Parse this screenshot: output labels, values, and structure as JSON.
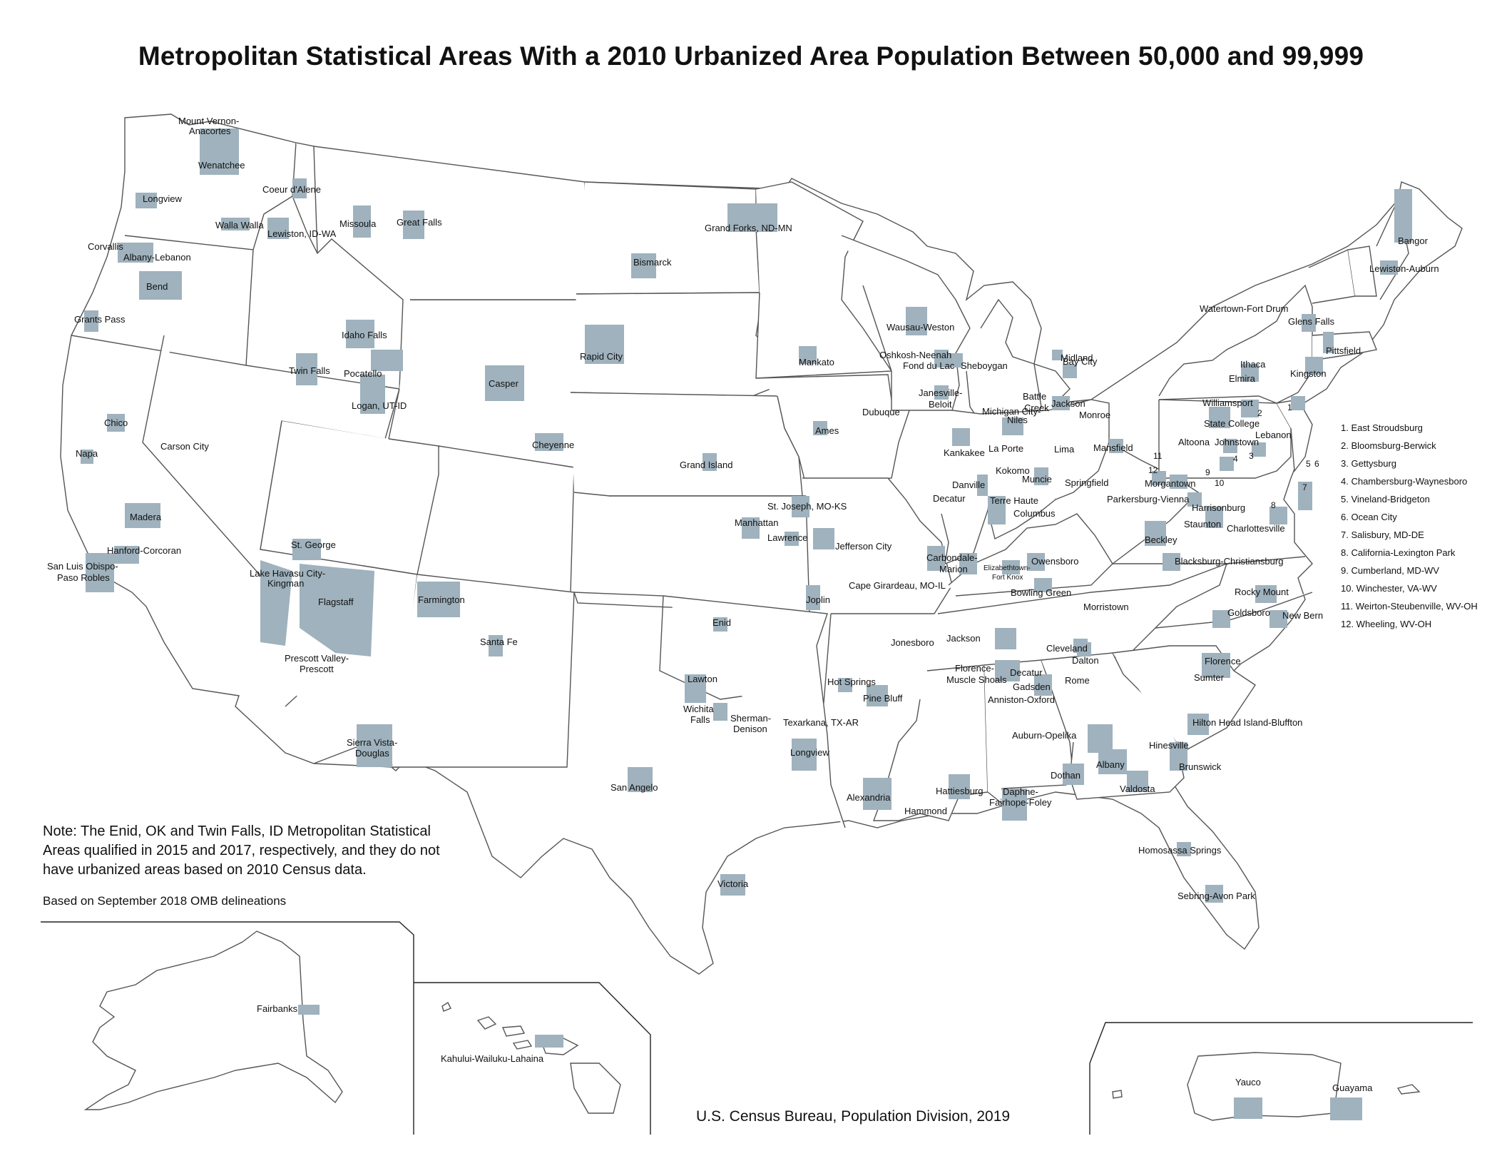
{
  "title": "Metropolitan Statistical Areas With a 2010 Urbanized Area Population Between 50,000 and 99,999",
  "note": "Note: The Enid, OK and Twin Falls, ID Metropolitan Statistical Areas qualified in 2015 and 2017, respectively, and they do not have urbanized areas based on 2010 Census data.",
  "basis": "Based on September 2018 OMB delineations",
  "source": "U.S. Census Bureau, Population Division, 2019",
  "colors": {
    "msa_fill": "#9fb2bd",
    "state_outline": "#555555",
    "background": "#ffffff"
  },
  "legend": [
    "1. East Stroudsburg",
    "2. Bloomsburg-Berwick",
    "3. Gettysburg",
    "4. Chambersburg-Waynesboro",
    "5. Vineland-Bridgeton",
    "6. Ocean City",
    "7. Salisbury, MD-DE",
    "8. California-Lexington Park",
    "9. Cumberland, MD-WV",
    "10. Winchester, VA-WV",
    "11. Weirton-Steubenville, WV-OH",
    "12. Wheeling, WV-OH"
  ],
  "map_numbers": [
    "1",
    "2",
    "3",
    "4",
    "5",
    "6",
    "7",
    "8",
    "9",
    "10",
    "11",
    "12"
  ],
  "cities": [
    "Mount Vernon-",
    "Anacortes",
    "Wenatchee",
    "Longview",
    "Coeur d'Alene",
    "Walla Walla",
    "Lewiston, ID-WA",
    "Missoula",
    "Great Falls",
    "Corvallis",
    "Albany-Lebanon",
    "Bend",
    "Grants Pass",
    "Idaho Falls",
    "Twin Falls",
    "Pocatello",
    "Logan, UT-ID",
    "Chico",
    "Napa",
    "Carson City",
    "Madera",
    "Hanford-Corcoran",
    "San Luis Obispo-",
    "Paso Robles",
    "St. George",
    "Lake Havasu City-",
    "Kingman",
    "Flagstaff",
    "Prescott Valley-",
    "Prescott",
    "Sierra Vista-",
    "Douglas",
    "Casper",
    "Cheyenne",
    "Rapid City",
    "Farmington",
    "Santa Fe",
    "Bismarck",
    "Grand Forks, ND-MN",
    "Grand Island",
    "Manhattan",
    "St. Joseph, MO-KS",
    "Lawrence",
    "Enid",
    "Lawton",
    "Wichita",
    "Falls",
    "Sherman-",
    "Denison",
    "San Angelo",
    "Victoria",
    "Texarkana, TX-AR",
    "Longview",
    "Alexandria",
    "Hot Springs",
    "Pine Bluff",
    "Jonesboro",
    "Jefferson City",
    "Joplin",
    "Cape Girardeau, MO-IL",
    "Mankato",
    "Ames",
    "Dubuque",
    "Wausau-Weston",
    "Oshkosh-Neenah",
    "Fond du Lac",
    "Sheboygan",
    "Janesville-",
    "Beloit",
    "Kankakee",
    "Danville",
    "Decatur",
    "Michigan City-",
    "La Porte",
    "Niles",
    "Kokomo",
    "Muncie",
    "Terre Haute",
    "Columbus",
    "Carbondale-",
    "Marion",
    "Elizabethtown-",
    "Fort Knox",
    "Owensboro",
    "Bowling Green",
    "Midland",
    "Bay City",
    "Battle",
    "Creek",
    "Jackson",
    "Monroe",
    "Lima",
    "Mansfield",
    "Springfield",
    "Parkersburg-Vienna",
    "Morgantown",
    "Beckley",
    "Blacksburg-Christiansburg",
    "Harrisonburg",
    "Staunton",
    "Charlottesville",
    "Morristown",
    "Jackson",
    "Cleveland",
    "Dalton",
    "Rome",
    "Florence-",
    "Muscle Shoals",
    "Decatur",
    "Gadsden",
    "Anniston-Oxford",
    "Auburn-Opelika",
    "Dothan",
    "Albany",
    "Valdosta",
    "Hattiesburg",
    "Hammond",
    "Daphne-",
    "Fairhope-Foley",
    "Hinesville",
    "Brunswick",
    "Homosassa Springs",
    "Sebring-Avon Park",
    "Hilton Head Island-Bluffton",
    "Florence",
    "Sumter",
    "Rocky Mount",
    "Goldsboro",
    "New Bern",
    "Watertown-Fort Drum",
    "Glens Falls",
    "Pittsfield",
    "Ithaca",
    "Elmira",
    "Kingston",
    "Williamsport",
    "State College",
    "Altoona",
    "Johnstown",
    "Lebanon",
    "Bangor",
    "Lewiston-Auburn",
    "Fairbanks",
    "Kahului-Wailuku-Lahaina",
    "Yauco",
    "Guayama"
  ]
}
